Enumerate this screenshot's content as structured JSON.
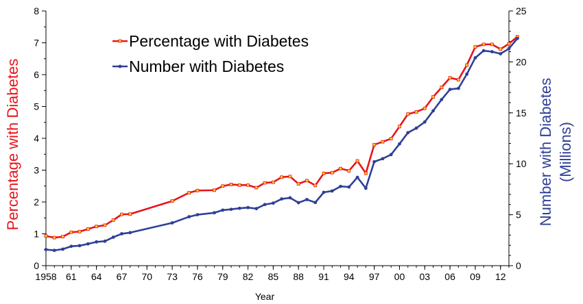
{
  "chart_data": {
    "type": "line",
    "xlabel": "Year",
    "ylabel_left": "Percentage with Diabetes",
    "ylabel_right_line1": "Number with Diabetes",
    "ylabel_right_line2": "(Millions)",
    "ylim_left": [
      0,
      8
    ],
    "ylim_right": [
      0,
      25
    ],
    "xlim": [
      1958,
      2013
    ],
    "x_tick_values": [
      1958,
      1961,
      1964,
      1967,
      1970,
      1973,
      1976,
      1979,
      1982,
      1985,
      1988,
      1991,
      1994,
      1997,
      2000,
      2003,
      2006,
      2009,
      2012
    ],
    "x_tick_labels": [
      "1958",
      "61",
      "64",
      "67",
      "70",
      "73",
      "76",
      "79",
      "82",
      "85",
      "88",
      "91",
      "94",
      "97",
      "00",
      "03",
      "06",
      "09",
      "12"
    ],
    "y_left_ticks": [
      0,
      1,
      2,
      3,
      4,
      5,
      6,
      7,
      8
    ],
    "y_right_ticks": [
      0,
      5,
      10,
      15,
      20,
      25
    ],
    "colors": {
      "percentage": "#e8141c",
      "number": "#2e3f96",
      "marker_fill": "#f5d21e"
    },
    "series": [
      {
        "name": "Percentage with Diabetes",
        "axis": "left",
        "x": [
          1958,
          1959,
          1960,
          1961,
          1962,
          1963,
          1964,
          1965,
          1966,
          1967,
          1968,
          1973,
          1975,
          1976,
          1978,
          1979,
          1980,
          1981,
          1982,
          1983,
          1984,
          1985,
          1986,
          1987,
          1988,
          1989,
          1990,
          1991,
          1992,
          1993,
          1994,
          1995,
          1996,
          1997,
          1998,
          1999,
          2000,
          2001,
          2002,
          2003,
          2004,
          2005,
          2006,
          2007,
          2008,
          2009,
          2010,
          2011,
          2012,
          2013,
          2014
        ],
        "values": [
          0.93,
          0.88,
          0.91,
          1.05,
          1.07,
          1.15,
          1.23,
          1.27,
          1.43,
          1.61,
          1.62,
          2.03,
          2.29,
          2.36,
          2.37,
          2.5,
          2.55,
          2.53,
          2.53,
          2.45,
          2.6,
          2.62,
          2.78,
          2.8,
          2.57,
          2.67,
          2.52,
          2.9,
          2.92,
          3.05,
          2.98,
          3.29,
          2.9,
          3.8,
          3.89,
          3.99,
          4.37,
          4.76,
          4.83,
          4.94,
          5.3,
          5.6,
          5.9,
          5.84,
          6.3,
          6.87,
          6.95,
          6.95,
          6.8,
          6.97,
          7.19
        ]
      },
      {
        "name": "Number with Diabetes",
        "axis": "right",
        "x": [
          1958,
          1959,
          1960,
          1961,
          1962,
          1963,
          1964,
          1965,
          1966,
          1967,
          1968,
          1973,
          1975,
          1976,
          1978,
          1979,
          1980,
          1981,
          1982,
          1983,
          1984,
          1985,
          1986,
          1987,
          1988,
          1989,
          1990,
          1991,
          1992,
          1993,
          1994,
          1995,
          1996,
          1997,
          1998,
          1999,
          2000,
          2001,
          2002,
          2003,
          2004,
          2005,
          2006,
          2007,
          2008,
          2009,
          2010,
          2011,
          2012,
          2013,
          2014
        ],
        "values": [
          1.58,
          1.5,
          1.62,
          1.9,
          1.96,
          2.14,
          2.33,
          2.4,
          2.79,
          3.13,
          3.24,
          4.2,
          4.8,
          5.0,
          5.19,
          5.45,
          5.53,
          5.63,
          5.7,
          5.6,
          6.0,
          6.14,
          6.55,
          6.66,
          6.18,
          6.49,
          6.2,
          7.2,
          7.33,
          7.78,
          7.72,
          8.67,
          7.6,
          10.2,
          10.5,
          10.9,
          11.95,
          13.05,
          13.5,
          14.1,
          15.2,
          16.3,
          17.3,
          17.4,
          18.8,
          20.4,
          21.1,
          21.0,
          20.8,
          21.3,
          22.3
        ]
      }
    ]
  }
}
